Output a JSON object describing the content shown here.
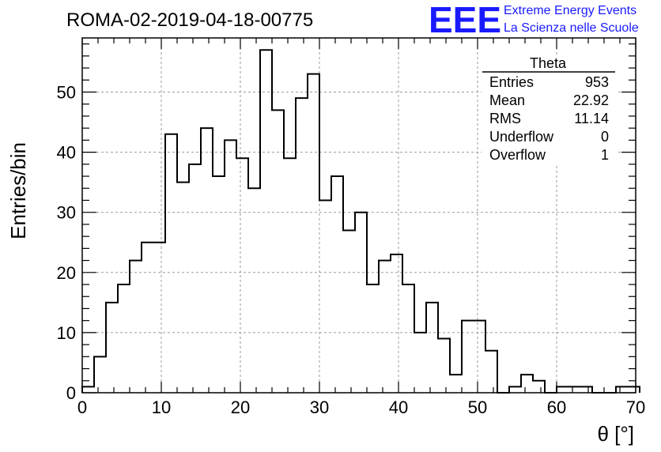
{
  "header": {
    "run_title": "ROMA-02-2019-04-18-00775",
    "logo": "EEE",
    "logo_line1": "Extreme Energy Events",
    "logo_line2": "La Scienza nelle Scuole",
    "logo_color": "#1a1aff"
  },
  "stats": {
    "title": "Theta",
    "rows": [
      {
        "label": "Entries",
        "value": "953"
      },
      {
        "label": "Mean",
        "value": "22.92"
      },
      {
        "label": "RMS",
        "value": "11.14"
      },
      {
        "label": "Underflow",
        "value": "0"
      },
      {
        "label": "Overflow",
        "value": "1"
      }
    ]
  },
  "chart_data": {
    "type": "histogram",
    "xlabel": "θ [°]",
    "ylabel": "Entries/bin",
    "xlim": [
      0,
      70
    ],
    "ylim": [
      0,
      59
    ],
    "xticks": [
      0,
      10,
      20,
      30,
      40,
      50,
      60,
      70
    ],
    "yticks": [
      0,
      10,
      20,
      30,
      40,
      50
    ],
    "grid": true,
    "bin_width": 1.5,
    "bin_edges_start": 0,
    "values": [
      1,
      6,
      15,
      18,
      22,
      25,
      25,
      43,
      35,
      38,
      44,
      36,
      42,
      39,
      34,
      57,
      47,
      39,
      49,
      53,
      32,
      36,
      27,
      30,
      18,
      22,
      23,
      18,
      10,
      15,
      9,
      3,
      12,
      12,
      7,
      0,
      1,
      3,
      2,
      0,
      1,
      1,
      1,
      0,
      0,
      1,
      1
    ]
  }
}
